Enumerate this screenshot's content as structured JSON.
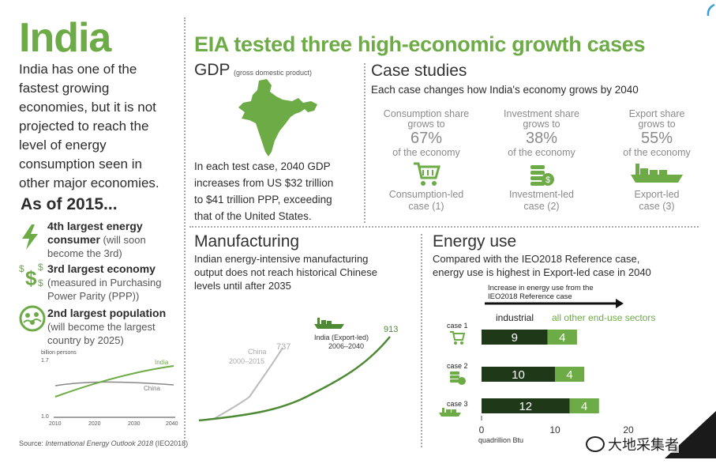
{
  "left": {
    "title": "India",
    "intro": [
      "India has one of the",
      "fastest growing",
      "economies, but it is not",
      "projected to reach the",
      "level of energy",
      "consumption seen in",
      "other major economies."
    ],
    "as_of": "As of 2015...",
    "facts": [
      {
        "icon": "lightning-icon",
        "bold": "4th largest energy",
        "bold2": "consumer",
        "rest": " (will soon",
        "rest2": "become the 3rd)"
      },
      {
        "icon": "dollar-icon",
        "bold": "3rd largest economy",
        "rest": "(measured in Purchasing",
        "rest2": "Power Parity (PPP))"
      },
      {
        "icon": "population-icon",
        "bold": "2nd largest population",
        "rest": "(will become the largest",
        "rest2": "country by 2025)"
      }
    ],
    "pop_chart": {
      "unit": "billion persons",
      "ytick_top": "1.7",
      "ytick_bottom": "1.0",
      "xticks": [
        "2010",
        "2020",
        "2030",
        "2040"
      ],
      "india_label": "India",
      "china_label": "China"
    },
    "source_prefix": "Source: ",
    "source_italic": "International Energy Outlook 2018",
    "source_suffix": " (IEO2018)"
  },
  "header": {
    "title": "EIA tested three high-economic growth cases"
  },
  "gdp": {
    "title": "GDP",
    "subtitle": "(gross domestic product)",
    "text": [
      "In each test case, 2040 GDP",
      "increases from US $32 trillion",
      "to $41 trillion PPP, exceeding",
      "that of the United States."
    ]
  },
  "cases": {
    "title": "Case studies",
    "subtitle": "Each case changes how India's economy grows by 2040",
    "items": [
      {
        "l1": "Consumption share",
        "l2": "grows to",
        "pct": "67%",
        "l3": "of the economy",
        "icon": "shopping-cart-icon",
        "c1": "Consumption-led",
        "c2": "case (1)"
      },
      {
        "l1": "Investment share",
        "l2": "grows to",
        "pct": "38%",
        "l3": "of the economy",
        "icon": "coins-icon",
        "c1": "Investment-led",
        "c2": "case (2)"
      },
      {
        "l1": "Export share",
        "l2": "grows to",
        "pct": "55%",
        "l3": "of the economy",
        "icon": "cargo-ship-icon",
        "c1": "Export-led",
        "c2": "case (3)"
      }
    ]
  },
  "manufacturing": {
    "title": "Manufacturing",
    "text": [
      "Indian energy-intensive manufacturing",
      "output does not reach historical Chinese",
      "levels until after 2035"
    ],
    "china_label": "China",
    "china_years": "2000–2015",
    "china_end": "737",
    "india_label": "India (Export-led)",
    "india_years": "2006–2040",
    "india_end": "913"
  },
  "energy": {
    "title": "Energy use",
    "text": [
      "Compared with the IEO2018 Reference case,",
      "energy use is highest in Export-led case in 2040"
    ],
    "arrow_label1": "Increase in energy use from the",
    "arrow_label2": "IEO2018 Reference case"
  },
  "watermark": "大地采集者",
  "chart_data": {
    "type": "bar",
    "title": "Increase in energy use from the IEO2018 Reference case",
    "xlabel": "quadrillion Btu",
    "categories": [
      "case 1",
      "case 2",
      "case 3"
    ],
    "series": [
      {
        "name": "industrial",
        "values": [
          9,
          10,
          12
        ],
        "color": "#1e3818"
      },
      {
        "name": "all other end-use sectors",
        "values": [
          4,
          4,
          4
        ],
        "color": "#6cab45"
      }
    ],
    "xticks": [
      0,
      10,
      20
    ],
    "xlim": [
      0,
      20
    ],
    "stacked": true,
    "orientation": "horizontal",
    "legend": "top"
  }
}
